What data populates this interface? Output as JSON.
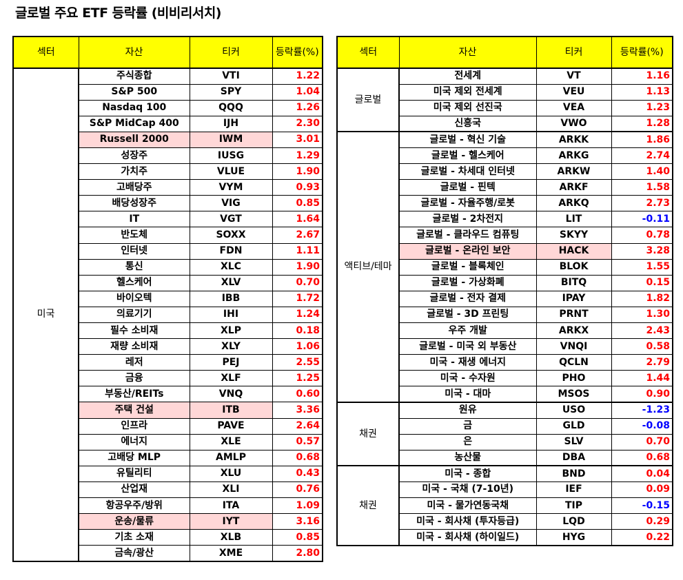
{
  "title": "글로벌 주요 ETF 등락률 (비비리서치)",
  "headers": {
    "sector": "섹터",
    "asset": "자산",
    "ticker": "티커",
    "change": "등락률(%)"
  },
  "colors": {
    "header_bg": "#ffff00",
    "highlight_bg": "#ffd7d7",
    "positive": "#ff0000",
    "negative": "#0000ff"
  },
  "left_groups": [
    {
      "sector": "미국",
      "rows": [
        {
          "asset": "주식종합",
          "ticker": "VTI",
          "change": "1.22",
          "highlight": false
        },
        {
          "asset": "S&P 500",
          "ticker": "SPY",
          "change": "1.04",
          "highlight": false
        },
        {
          "asset": "Nasdaq 100",
          "ticker": "QQQ",
          "change": "1.26",
          "highlight": false
        },
        {
          "asset": "S&P MidCap 400",
          "ticker": "IJH",
          "change": "2.30",
          "highlight": false
        },
        {
          "asset": "Russell 2000",
          "ticker": "IWM",
          "change": "3.01",
          "highlight": true
        },
        {
          "asset": "성장주",
          "ticker": "IUSG",
          "change": "1.29",
          "highlight": false
        },
        {
          "asset": "가치주",
          "ticker": "VLUE",
          "change": "1.90",
          "highlight": false
        },
        {
          "asset": "고배당주",
          "ticker": "VYM",
          "change": "0.93",
          "highlight": false
        },
        {
          "asset": "배당성장주",
          "ticker": "VIG",
          "change": "0.85",
          "highlight": false
        },
        {
          "asset": "IT",
          "ticker": "VGT",
          "change": "1.64",
          "highlight": false
        },
        {
          "asset": "반도체",
          "ticker": "SOXX",
          "change": "2.67",
          "highlight": false
        },
        {
          "asset": "인터넷",
          "ticker": "FDN",
          "change": "1.11",
          "highlight": false
        },
        {
          "asset": "통신",
          "ticker": "XLC",
          "change": "1.90",
          "highlight": false
        },
        {
          "asset": "헬스케어",
          "ticker": "XLV",
          "change": "0.70",
          "highlight": false
        },
        {
          "asset": "바이오텍",
          "ticker": "IBB",
          "change": "1.72",
          "highlight": false
        },
        {
          "asset": "의료기기",
          "ticker": "IHI",
          "change": "1.24",
          "highlight": false
        },
        {
          "asset": "필수 소비재",
          "ticker": "XLP",
          "change": "0.18",
          "highlight": false
        },
        {
          "asset": "재량 소비재",
          "ticker": "XLY",
          "change": "1.06",
          "highlight": false
        },
        {
          "asset": "레저",
          "ticker": "PEJ",
          "change": "2.55",
          "highlight": false
        },
        {
          "asset": "금융",
          "ticker": "XLF",
          "change": "1.25",
          "highlight": false
        },
        {
          "asset": "부동산/REITs",
          "ticker": "VNQ",
          "change": "0.60",
          "highlight": false
        },
        {
          "asset": "주택 건설",
          "ticker": "ITB",
          "change": "3.36",
          "highlight": true
        },
        {
          "asset": "인프라",
          "ticker": "PAVE",
          "change": "2.64",
          "highlight": false
        },
        {
          "asset": "에너지",
          "ticker": "XLE",
          "change": "0.57",
          "highlight": false
        },
        {
          "asset": "고배당 MLP",
          "ticker": "AMLP",
          "change": "0.68",
          "highlight": false
        },
        {
          "asset": "유틸리티",
          "ticker": "XLU",
          "change": "0.43",
          "highlight": false
        },
        {
          "asset": "산업재",
          "ticker": "XLI",
          "change": "0.76",
          "highlight": false
        },
        {
          "asset": "항공우주/방위",
          "ticker": "ITA",
          "change": "1.09",
          "highlight": false
        },
        {
          "asset": "운송/물류",
          "ticker": "IYT",
          "change": "3.16",
          "highlight": true
        },
        {
          "asset": "기초 소재",
          "ticker": "XLB",
          "change": "0.85",
          "highlight": false
        },
        {
          "asset": "금속/광산",
          "ticker": "XME",
          "change": "2.80",
          "highlight": false
        }
      ]
    }
  ],
  "right_groups": [
    {
      "sector": "글로벌",
      "rows": [
        {
          "asset": "전세계",
          "ticker": "VT",
          "change": "1.16",
          "highlight": false
        },
        {
          "asset": "미국 제외 전세계",
          "ticker": "VEU",
          "change": "1.13",
          "highlight": false
        },
        {
          "asset": "미국 제외 선진국",
          "ticker": "VEA",
          "change": "1.23",
          "highlight": false
        },
        {
          "asset": "신흥국",
          "ticker": "VWO",
          "change": "1.28",
          "highlight": false
        }
      ]
    },
    {
      "sector": "액티브/테마",
      "rows": [
        {
          "asset": "글로벌 - 혁신 기술",
          "ticker": "ARKK",
          "change": "1.86",
          "highlight": false
        },
        {
          "asset": "글로벌 - 헬스케어",
          "ticker": "ARKG",
          "change": "2.74",
          "highlight": false
        },
        {
          "asset": "글로벌 - 차세대 인터넷",
          "ticker": "ARKW",
          "change": "1.40",
          "highlight": false
        },
        {
          "asset": "글로벌 - 핀텍",
          "ticker": "ARKF",
          "change": "1.58",
          "highlight": false
        },
        {
          "asset": "글로벌 - 자율주행/로봇",
          "ticker": "ARKQ",
          "change": "2.73",
          "highlight": false
        },
        {
          "asset": "글로벌 - 2차전지",
          "ticker": "LIT",
          "change": "-0.11",
          "highlight": false
        },
        {
          "asset": "글로벌 - 클라우드 컴퓨팅",
          "ticker": "SKYY",
          "change": "0.78",
          "highlight": false
        },
        {
          "asset": "글로벌 - 온라인 보안",
          "ticker": "HACK",
          "change": "3.28",
          "highlight": true
        },
        {
          "asset": "글로벌 - 블록체인",
          "ticker": "BLOK",
          "change": "1.55",
          "highlight": false
        },
        {
          "asset": "글로벌 - 가상화폐",
          "ticker": "BITQ",
          "change": "0.15",
          "highlight": false
        },
        {
          "asset": "글로벌 - 전자 결제",
          "ticker": "IPAY",
          "change": "1.82",
          "highlight": false
        },
        {
          "asset": "글로벌 - 3D 프린팅",
          "ticker": "PRNT",
          "change": "1.30",
          "highlight": false
        },
        {
          "asset": "우주 개발",
          "ticker": "ARKX",
          "change": "2.43",
          "highlight": false
        },
        {
          "asset": "글로벌 - 미국 외 부동산",
          "ticker": "VNQI",
          "change": "0.58",
          "highlight": false
        },
        {
          "asset": "미국 - 재생 에너지",
          "ticker": "QCLN",
          "change": "2.79",
          "highlight": false
        },
        {
          "asset": "미국 - 수자원",
          "ticker": "PHO",
          "change": "1.44",
          "highlight": false
        },
        {
          "asset": "미국 - 대마",
          "ticker": "MSOS",
          "change": "0.90",
          "highlight": false
        }
      ]
    },
    {
      "sector": "채권",
      "rows": [
        {
          "asset": "원유",
          "ticker": "USO",
          "change": "-1.23",
          "highlight": false
        },
        {
          "asset": "금",
          "ticker": "GLD",
          "change": "-0.08",
          "highlight": false
        },
        {
          "asset": "은",
          "ticker": "SLV",
          "change": "0.70",
          "highlight": false
        },
        {
          "asset": "농산물",
          "ticker": "DBA",
          "change": "0.68",
          "highlight": false
        }
      ]
    },
    {
      "sector": "채권",
      "rows": [
        {
          "asset": "미국 - 종합",
          "ticker": "BND",
          "change": "0.04",
          "highlight": false
        },
        {
          "asset": "미국 - 국채 (7-10년)",
          "ticker": "IEF",
          "change": "0.09",
          "highlight": false
        },
        {
          "asset": "미국 - 물가연동국채",
          "ticker": "TIP",
          "change": "-0.15",
          "highlight": false
        },
        {
          "asset": "미국 - 회사채 (투자등급)",
          "ticker": "LQD",
          "change": "0.29",
          "highlight": false
        },
        {
          "asset": "미국 - 회사채 (하이일드)",
          "ticker": "HYG",
          "change": "0.22",
          "highlight": false
        }
      ]
    }
  ]
}
